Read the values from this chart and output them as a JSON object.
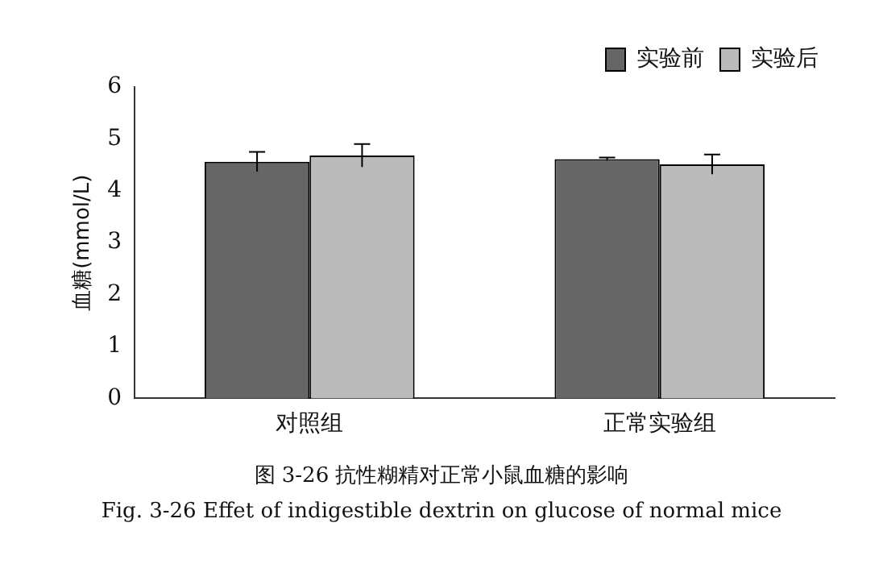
{
  "chart_data": {
    "type": "bar",
    "ylabel": "血糖(mmol/L)",
    "categories": [
      "对照组",
      "正常实验组"
    ],
    "series": [
      {
        "name": "实验前",
        "color": "#666666",
        "values": [
          4.56,
          4.61
        ],
        "errors": [
          0.19,
          0.03
        ]
      },
      {
        "name": "实验后",
        "color": "#bbbbbb",
        "values": [
          4.68,
          4.51
        ],
        "errors": [
          0.22,
          0.19
        ]
      }
    ],
    "ylim": [
      0,
      6
    ],
    "yticks": [
      0,
      1,
      2,
      3,
      4,
      5,
      6
    ],
    "grid": false,
    "legend": "top right",
    "annotations": [
      "图 3-26  抗性糊精对正常小鼠血糖的影响",
      "Fig. 3-26 Effet of indigestible dextrin on glucose of normal mice"
    ]
  }
}
